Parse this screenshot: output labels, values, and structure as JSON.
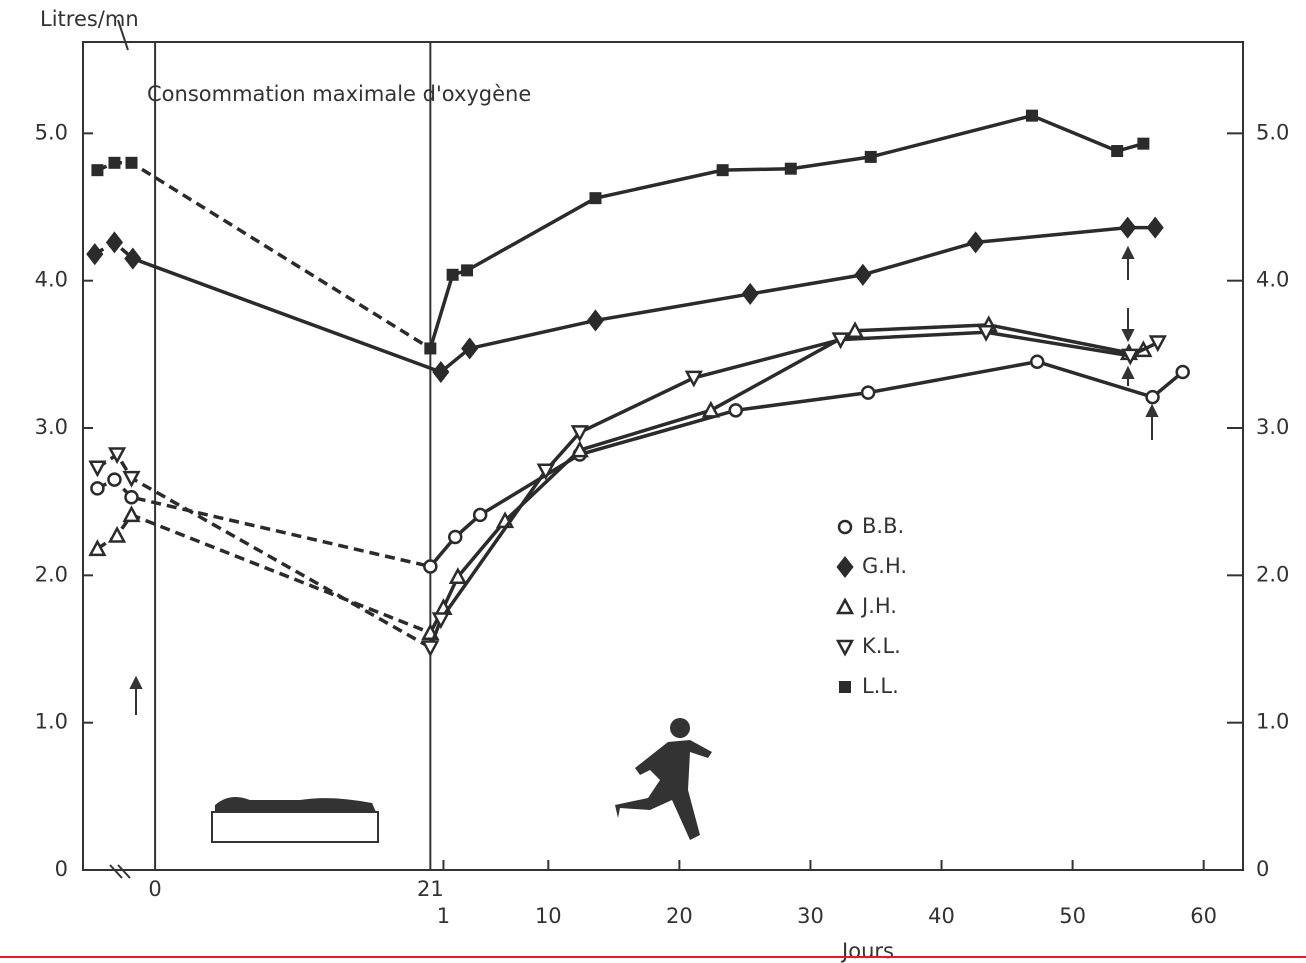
{
  "chart_data": {
    "type": "line",
    "title": "Consommation maximale d'oxygène",
    "y_label": "Litres/mn",
    "x_label": "Jours",
    "xlim": [
      -5.5,
      83
    ],
    "ylim": [
      0,
      5.62
    ],
    "y2lim": [
      0,
      5.62
    ],
    "xticks_bedrest": [
      0,
      21
    ],
    "xticks": [
      {
        "value": 22,
        "label": "1"
      },
      {
        "value": 30,
        "label": "10"
      },
      {
        "value": 40,
        "label": "20"
      },
      {
        "value": 50,
        "label": "30"
      },
      {
        "value": 60,
        "label": "40"
      },
      {
        "value": 70,
        "label": "50"
      },
      {
        "value": 80,
        "label": "60"
      }
    ],
    "yticks": [
      0,
      {
        "value": 1,
        "label": "1.0"
      },
      {
        "value": 2,
        "label": "2.0"
      },
      {
        "value": 3,
        "label": "3.0"
      },
      {
        "value": 4,
        "label": "4.0"
      },
      {
        "value": 5,
        "label": "5.0"
      }
    ],
    "y2ticks": [
      0,
      {
        "value": 1,
        "label": "1.0"
      },
      {
        "value": 2,
        "label": "2.0"
      },
      {
        "value": 3,
        "label": "3.0"
      },
      {
        "value": 4,
        "label": "4.0"
      },
      {
        "value": 5,
        "label": "5.0"
      }
    ],
    "grid": false,
    "series": [
      {
        "name": "B.B.",
        "marker": "circle",
        "color": "#2b2b2b",
        "x": [
          -4.4,
          -3.1,
          -1.8,
          21,
          22.9,
          24.8,
          32.4,
          44.3,
          54.4,
          67.3,
          76.1,
          78.4
        ],
        "values": [
          2.59,
          2.65,
          2.53,
          2.06,
          2.26,
          2.41,
          2.82,
          3.12,
          3.24,
          3.45,
          3.21,
          3.38
        ]
      },
      {
        "name": "G.H.",
        "marker": "diamond",
        "color": "#2b2b2b",
        "x": [
          -4.6,
          -3.1,
          -1.7,
          21.8,
          24,
          33.6,
          45.4,
          54,
          62.6,
          74.2,
          76.3
        ],
        "values": [
          4.18,
          4.26,
          4.15,
          3.38,
          3.54,
          3.73,
          3.91,
          4.04,
          4.26,
          4.36,
          4.36
        ]
      },
      {
        "name": "J.H.",
        "marker": "triangle-up",
        "color": "#2b2b2b",
        "x": [
          -4.4,
          -2.9,
          -1.8,
          21,
          22,
          23.1,
          26.7,
          32.4,
          42.4,
          53.4,
          63.6,
          74.3,
          75.4
        ],
        "values": [
          2.18,
          2.27,
          2.41,
          1.61,
          1.78,
          1.99,
          2.37,
          2.85,
          3.12,
          3.66,
          3.7,
          3.51,
          3.53
        ]
      },
      {
        "name": "K.L.",
        "marker": "triangle-down",
        "color": "#2b2b2b",
        "x": [
          -4.4,
          -2.9,
          -1.8,
          21,
          21.8,
          29.8,
          32.4,
          41.1,
          52.3,
          63.4,
          74.4,
          76.5
        ],
        "values": [
          2.73,
          2.82,
          2.66,
          1.51,
          1.7,
          2.71,
          2.97,
          3.34,
          3.6,
          3.65,
          3.49,
          3.58
        ]
      },
      {
        "name": "L.L.",
        "marker": "square",
        "color": "#2b2b2b",
        "x": [
          -4.4,
          -3.1,
          -1.8,
          21,
          22.7,
          23.8,
          33.6,
          43.3,
          48.5,
          54.6,
          66.9,
          73.4,
          75.4
        ],
        "values": [
          4.75,
          4.8,
          4.8,
          3.54,
          4.04,
          4.07,
          4.56,
          4.75,
          4.76,
          4.84,
          5.12,
          4.88,
          4.93
        ]
      }
    ]
  }
}
